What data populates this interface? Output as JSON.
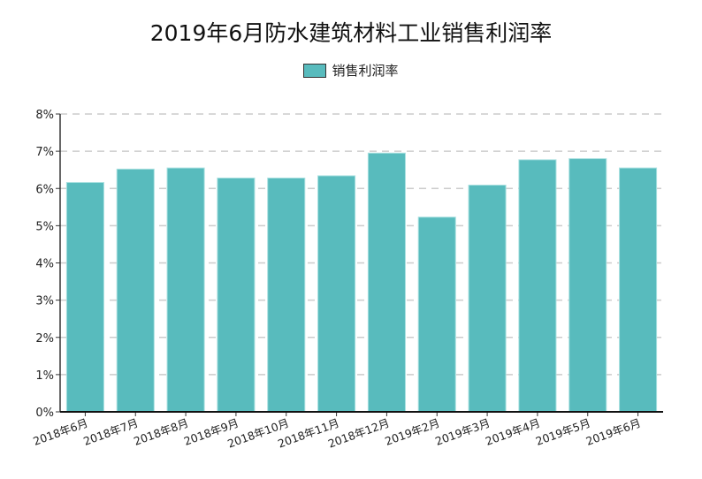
{
  "chart_data": {
    "type": "bar",
    "title": "2019年6月防水建筑材料工业销售利润率",
    "categories": [
      "2018年6月",
      "2018年7月",
      "2018年8月",
      "2018年9月",
      "2018年10月",
      "2018年11月",
      "2018年12月",
      "2019年2月",
      "2019年3月",
      "2019年4月",
      "2019年5月",
      "2019年6月"
    ],
    "series": [
      {
        "name": "销售利润率",
        "values": [
          6.16,
          6.52,
          6.55,
          6.28,
          6.28,
          6.34,
          6.95,
          5.23,
          6.09,
          6.77,
          6.8,
          6.55
        ]
      }
    ],
    "ylim": [
      0,
      8
    ],
    "yticks": [
      "0%",
      "1%",
      "2%",
      "3%",
      "4%",
      "5%",
      "6%",
      "7%",
      "8%"
    ],
    "grid": true,
    "legend": "top-center",
    "colors": {
      "bar": "#58bbbd",
      "grid": "#cccccc"
    }
  }
}
